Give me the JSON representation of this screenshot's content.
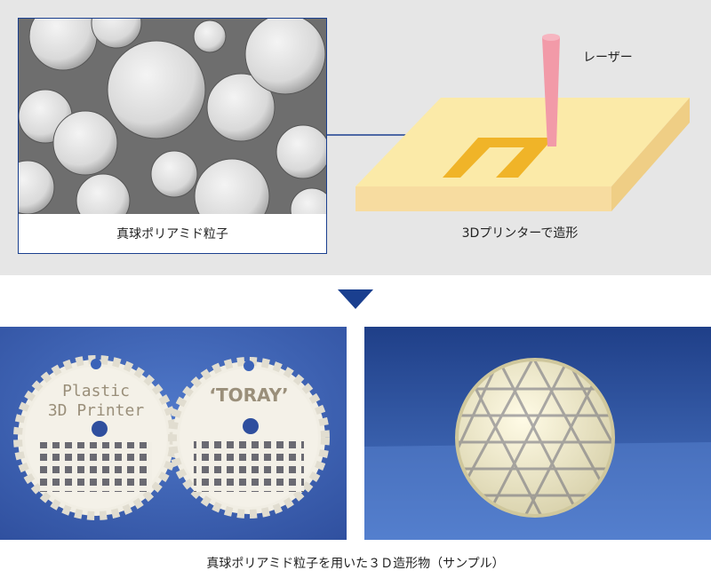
{
  "top_panel": {
    "micro_caption": "真球ポリアミド粒子",
    "printer_caption": "3Dプリンターで造形",
    "laser_label": "レーザー"
  },
  "samples": {
    "gear_text_line1": "Plastic",
    "gear_text_line2": "3D Printer",
    "gear2_text": "‘TORAY’"
  },
  "bottom_caption": "真球ポリアミド粒子を用いた３Ｄ造形物（サンプル）",
  "colors": {
    "panel_bg": "#e6e6e6",
    "accent_blue": "#1a3f8f",
    "bed_yellow": "#fbeaa8",
    "path_orange": "#f0b428",
    "laser_pink": "#f29aa8",
    "photo_blue": "#3b63b8"
  }
}
